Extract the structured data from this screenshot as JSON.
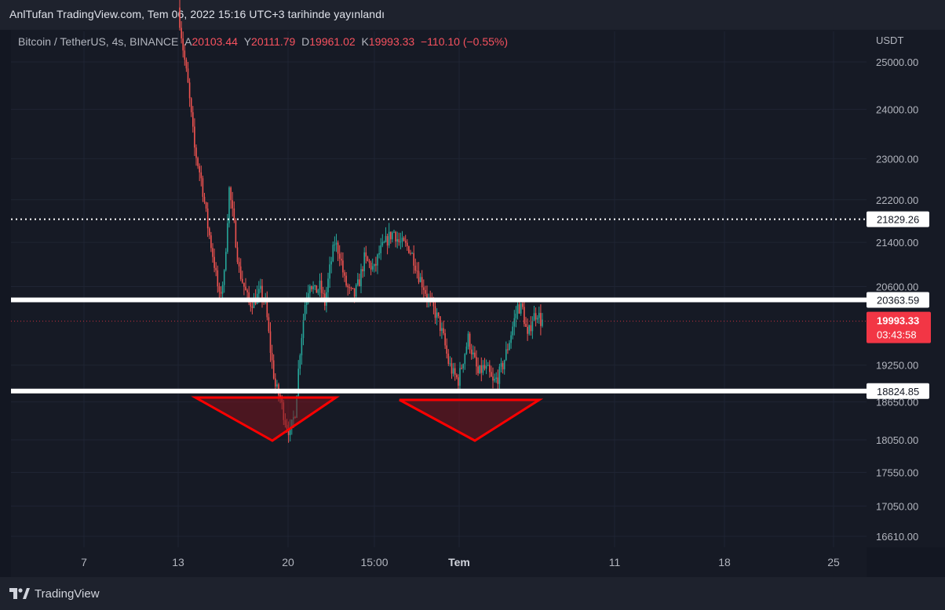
{
  "publish_text": "AnlTufan TradingView.com, Tem 06, 2022 15:16 UTC+3 tarihinde yayınlandı",
  "symbol": {
    "name": "Bitcoin / TetherUS, 4s, BINANCE",
    "open_label": "A",
    "open": "20103.44",
    "high_label": "Y",
    "high": "20111.79",
    "low_label": "D",
    "low": "19961.02",
    "close_label": "K",
    "close": "19993.33",
    "change": "−110.10 (−0.55%)"
  },
  "currency": "USDT",
  "brand": "TradingView",
  "colors": {
    "background": "#131722",
    "up": "#26a69a",
    "down": "#ef5350",
    "level_line": "#ffffff",
    "pattern": "#ff0000",
    "last_price_tag": "#f23645"
  },
  "chart_data": {
    "type": "candlestick",
    "y_scale": "log",
    "ylim": [
      16400,
      26200
    ],
    "y_ticks": [
      "25000.00",
      "24000.00",
      "23000.00",
      "22200.00",
      "21400.00",
      "20600.00",
      "19250.00",
      "18650.00",
      "18050.00",
      "17550.00",
      "17050.00",
      "16610.00"
    ],
    "x_ticks": [
      {
        "label": "7",
        "bold": false
      },
      {
        "label": "13",
        "bold": false
      },
      {
        "label": "20",
        "bold": false
      },
      {
        "label": "15:00",
        "bold": false
      },
      {
        "label": "Tem",
        "bold": true
      },
      {
        "label": "11",
        "bold": false
      },
      {
        "label": "18",
        "bold": false
      },
      {
        "label": "25",
        "bold": false
      }
    ],
    "levels": [
      {
        "value": 21829.26,
        "label": "21829.26",
        "style": "dotted"
      },
      {
        "value": 20363.59,
        "label": "20363.59",
        "style": "solid"
      },
      {
        "value": 18824.85,
        "label": "18824.85",
        "style": "solid"
      }
    ],
    "last_price": {
      "value": 19993.33,
      "label": "19993.33",
      "countdown": "03:43:58"
    },
    "patterns": [
      {
        "shape": "triangle",
        "points": [
          [
            18750,
            18750
          ],
          [
            18750,
            18750
          ],
          [
            18000,
            18000
          ]
        ]
      },
      {
        "shape": "triangle",
        "points": [
          [
            18720,
            18720
          ],
          [
            18720,
            18720
          ],
          [
            18100,
            18100
          ]
        ]
      }
    ],
    "path_points": [
      [
        0,
        26200
      ],
      [
        3,
        25300
      ],
      [
        6,
        24500
      ],
      [
        10,
        23200
      ],
      [
        14,
        22600
      ],
      [
        18,
        21700
      ],
      [
        22,
        21000
      ],
      [
        25,
        20400
      ],
      [
        28,
        20800
      ],
      [
        31,
        22400
      ],
      [
        34,
        21700
      ],
      [
        37,
        20900
      ],
      [
        40,
        20600
      ],
      [
        43,
        20300
      ],
      [
        46,
        20350
      ],
      [
        50,
        20500
      ],
      [
        53,
        20300
      ],
      [
        56,
        19500
      ],
      [
        59,
        18900
      ],
      [
        62,
        18700
      ],
      [
        65,
        18350
      ],
      [
        68,
        18150
      ],
      [
        71,
        18500
      ],
      [
        74,
        19500
      ],
      [
        77,
        20300
      ],
      [
        80,
        20700
      ],
      [
        83,
        20500
      ],
      [
        86,
        20600
      ],
      [
        89,
        20300
      ],
      [
        92,
        20900
      ],
      [
        95,
        21400
      ],
      [
        98,
        21200
      ],
      [
        101,
        20700
      ],
      [
        104,
        20500
      ],
      [
        107,
        20450
      ],
      [
        110,
        20700
      ],
      [
        113,
        21100
      ],
      [
        116,
        21000
      ],
      [
        119,
        20900
      ],
      [
        122,
        21200
      ],
      [
        125,
        21350
      ],
      [
        128,
        21500
      ],
      [
        131,
        21600
      ],
      [
        134,
        21400
      ],
      [
        137,
        21350
      ],
      [
        140,
        21300
      ],
      [
        143,
        21100
      ],
      [
        146,
        20800
      ],
      [
        149,
        20600
      ],
      [
        152,
        20350
      ],
      [
        155,
        20200
      ],
      [
        158,
        20000
      ],
      [
        161,
        19700
      ],
      [
        164,
        19300
      ],
      [
        167,
        19100
      ],
      [
        170,
        19000
      ],
      [
        173,
        19350
      ],
      [
        176,
        19700
      ],
      [
        179,
        19400
      ],
      [
        182,
        19100
      ],
      [
        185,
        19200
      ],
      [
        188,
        19150
      ],
      [
        191,
        18950
      ],
      [
        194,
        19050
      ],
      [
        197,
        19250
      ],
      [
        200,
        19550
      ],
      [
        203,
        19900
      ],
      [
        206,
        20250
      ],
      [
        209,
        20200
      ],
      [
        212,
        19700
      ],
      [
        215,
        20050
      ],
      [
        218,
        20150
      ],
      [
        220,
        19993
      ]
    ]
  }
}
